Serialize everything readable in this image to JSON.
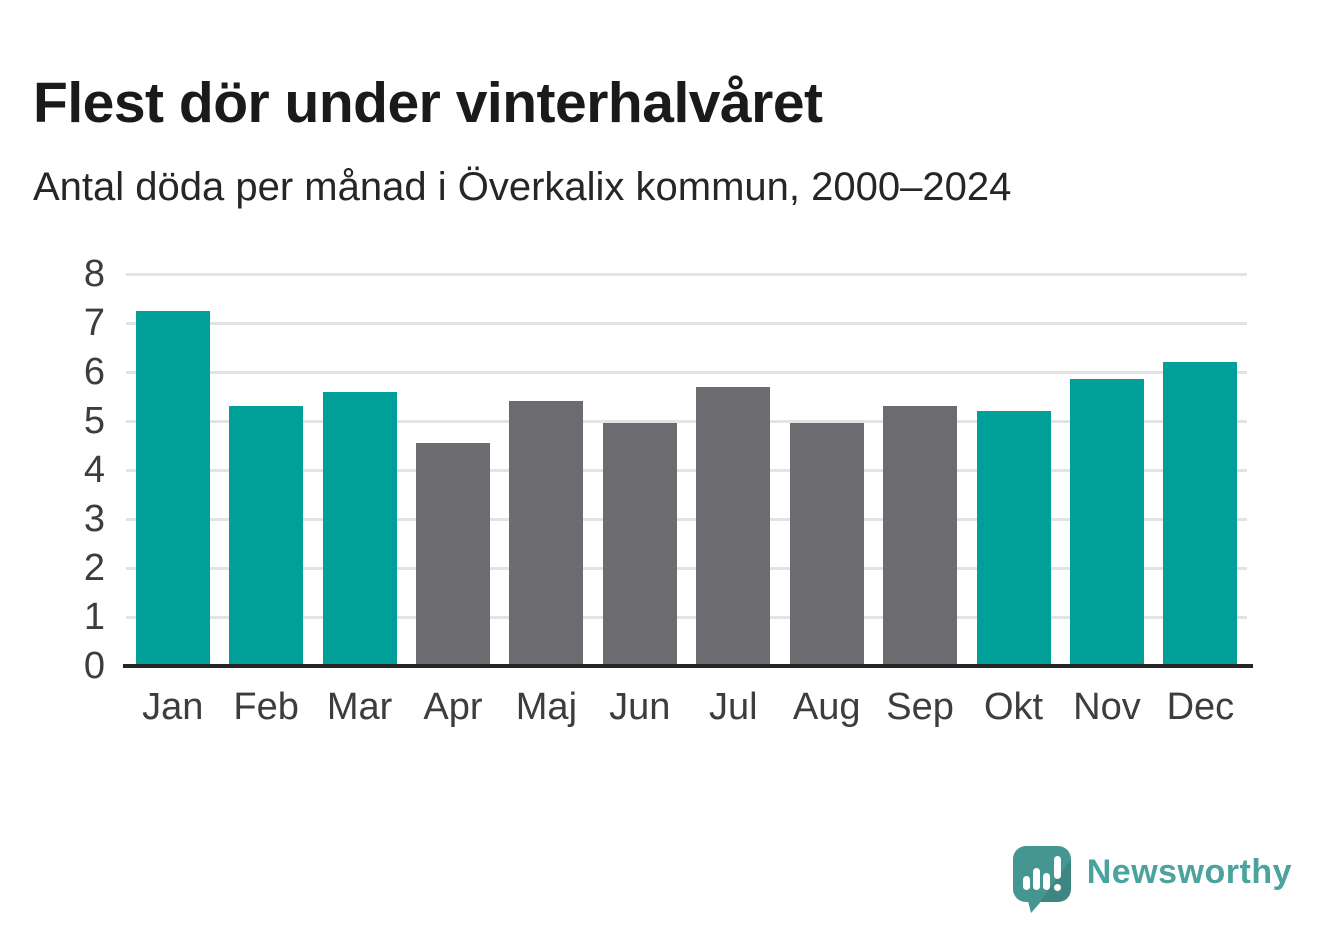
{
  "header": {
    "title": "Flest dör under vinterhalvåret",
    "subtitle": "Antal döda per månad i Överkalix kommun, 2000–2024"
  },
  "chart_data": {
    "type": "bar",
    "title": "Flest dör under vinterhalvåret",
    "subtitle": "Antal döda per månad i Överkalix kommun, 2000–2024",
    "categories": [
      "Jan",
      "Feb",
      "Mar",
      "Apr",
      "Maj",
      "Jun",
      "Jul",
      "Aug",
      "Sep",
      "Okt",
      "Nov",
      "Dec"
    ],
    "values": [
      7.25,
      5.3,
      5.6,
      4.55,
      5.4,
      4.95,
      5.7,
      4.95,
      5.3,
      5.2,
      5.85,
      6.2
    ],
    "bar_colors": [
      "#00a099",
      "#00a099",
      "#00a099",
      "#6c6c70",
      "#6c6c70",
      "#6c6c70",
      "#6c6c70",
      "#6c6c70",
      "#6c6c70",
      "#00a099",
      "#00a099",
      "#00a099"
    ],
    "color_legend": {
      "winter_months": "#00a099",
      "summer_months": "#6c6c70"
    },
    "xlabel": "",
    "ylabel": "",
    "ylim": [
      0,
      8
    ],
    "yticks": [
      0,
      1,
      2,
      3,
      4,
      5,
      6,
      7,
      8
    ],
    "grid": true,
    "gridline_color": "#e3e3e3",
    "axis_line_color": "#262626",
    "legend_position": "none"
  },
  "branding": {
    "name": "Newsworthy",
    "icon": "speech-bubble-bar-chart-icon",
    "icon_color": "#459690",
    "text_color": "#4aa39d"
  }
}
